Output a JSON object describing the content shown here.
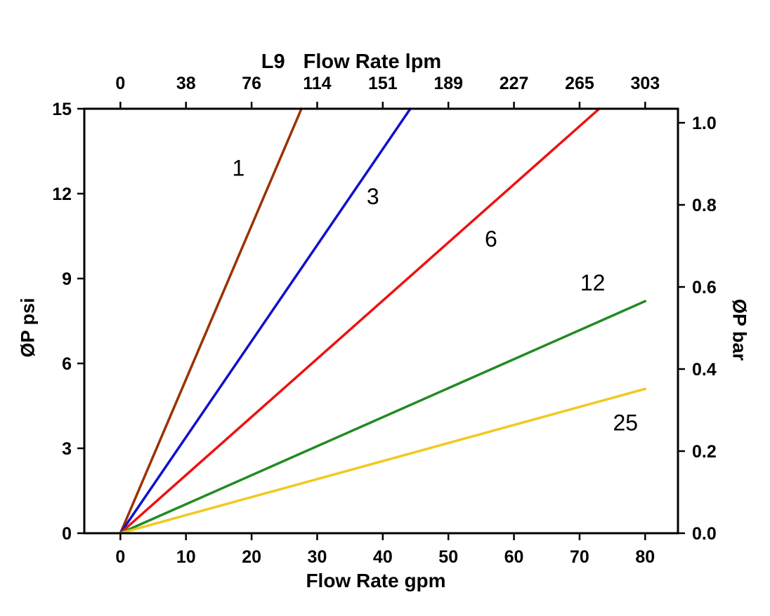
{
  "chart_data": {
    "type": "line",
    "title_model": "L9",
    "top_axis_label": "Flow Rate lpm",
    "bottom_axis_label": "Flow Rate gpm",
    "left_axis_label": "ØP psi",
    "right_axis_label": "ØP bar",
    "xlabel": "Flow Rate gpm",
    "ylabel": "ØP psi",
    "xlim": [
      -5.5,
      85
    ],
    "ylim": [
      0,
      15
    ],
    "grid": false,
    "legend_position": "inline-labels",
    "x_ticks_gpm": [
      0,
      10,
      20,
      30,
      40,
      50,
      60,
      70,
      80
    ],
    "top_tick_labels_lpm": [
      "0",
      "38",
      "76",
      "114",
      "151",
      "189",
      "227",
      "265",
      "303"
    ],
    "y_ticks_psi": [
      0,
      3,
      6,
      9,
      12,
      15
    ],
    "right_tick_labels_bar": [
      "0.0",
      "0.2",
      "0.4",
      "0.6",
      "0.8",
      "1.0"
    ],
    "psi_per_bar": 14.504,
    "series": [
      {
        "name": "1",
        "color": "#993300",
        "points": [
          [
            0,
            0
          ],
          [
            27.6,
            15
          ]
        ],
        "label_pos": [
          18,
          12.9
        ]
      },
      {
        "name": "3",
        "color": "#1111cc",
        "points": [
          [
            0,
            0
          ],
          [
            44.2,
            15
          ]
        ],
        "label_pos": [
          38.5,
          11.9
        ]
      },
      {
        "name": "6",
        "color": "#ee1111",
        "points": [
          [
            0,
            0
          ],
          [
            73,
            15
          ]
        ],
        "label_pos": [
          56.5,
          10.4
        ]
      },
      {
        "name": "12",
        "color": "#228b22",
        "points": [
          [
            0,
            0
          ],
          [
            80,
            8.2
          ]
        ],
        "label_pos": [
          72,
          8.85
        ]
      },
      {
        "name": "25",
        "color": "#f2c81e",
        "points": [
          [
            0,
            0
          ],
          [
            80,
            5.1
          ]
        ],
        "label_pos": [
          77,
          3.9
        ]
      }
    ]
  }
}
